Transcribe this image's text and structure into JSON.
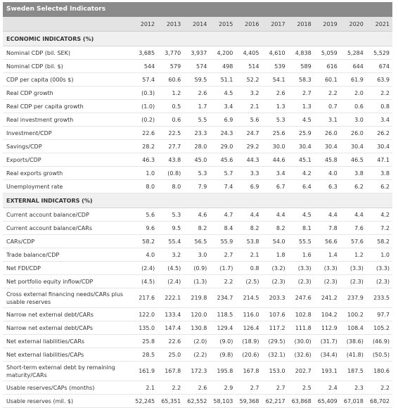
{
  "title": "Sweden Selected Indicators",
  "years": [
    "2012",
    "2013",
    "2014",
    "2015",
    "2016",
    "2017",
    "2018",
    "2019",
    "2020",
    "2021"
  ],
  "sections": [
    {
      "heading": "ECONOMIC INDICATORS (%)",
      "rows": [
        {
          "label": "Nominal CDP (bil. SEK)",
          "values": [
            "3,685",
            "3,770",
            "3,937",
            "4,200",
            "4,405",
            "4,610",
            "4,838",
            "5,059",
            "5,284",
            "5,529"
          ]
        },
        {
          "label": "Nominal CDP (bil. $)",
          "values": [
            "544",
            "579",
            "574",
            "498",
            "514",
            "539",
            "589",
            "616",
            "644",
            "674"
          ]
        },
        {
          "label": "CDP per capita (000s $)",
          "values": [
            "57.4",
            "60.6",
            "59.5",
            "51.1",
            "52.2",
            "54.1",
            "58.3",
            "60.1",
            "61.9",
            "63.9"
          ]
        },
        {
          "label": "Real CDP growth",
          "values": [
            "(0.3)",
            "1.2",
            "2.6",
            "4.5",
            "3.2",
            "2.6",
            "2.7",
            "2.2",
            "2.0",
            "2.2"
          ]
        },
        {
          "label": "Real CDP per capita growth",
          "values": [
            "(1.0)",
            "0.5",
            "1.7",
            "3.4",
            "2.1",
            "1.3",
            "1.3",
            "0.7",
            "0.6",
            "0.8"
          ]
        },
        {
          "label": "Real investment growth",
          "values": [
            "(0.2)",
            "0.6",
            "5.5",
            "6.9",
            "5.6",
            "5.3",
            "4.5",
            "3.1",
            "3.0",
            "3.4"
          ]
        },
        {
          "label": "Investment/CDP",
          "values": [
            "22.6",
            "22.5",
            "23.3",
            "24.3",
            "24.7",
            "25.6",
            "25.9",
            "26.0",
            "26.0",
            "26.2"
          ]
        },
        {
          "label": "Savings/CDP",
          "values": [
            "28.2",
            "27.7",
            "28.0",
            "29.0",
            "29.2",
            "30.0",
            "30.4",
            "30.4",
            "30.4",
            "30.4"
          ]
        },
        {
          "label": "Exports/CDP",
          "values": [
            "46.3",
            "43.8",
            "45.0",
            "45.6",
            "44.3",
            "44.6",
            "45.1",
            "45.8",
            "46.5",
            "47.1"
          ]
        },
        {
          "label": "Real exports growth",
          "values": [
            "1.0",
            "(0.8)",
            "5.3",
            "5.7",
            "3.3",
            "3.4",
            "4.2",
            "4.0",
            "3.8",
            "3.8"
          ]
        },
        {
          "label": "Unemployment rate",
          "values": [
            "8.0",
            "8.0",
            "7.9",
            "7.4",
            "6.9",
            "6.7",
            "6.4",
            "6.3",
            "6.2",
            "6.2"
          ]
        }
      ]
    },
    {
      "heading": "EXTERNAL INDICATORS (%)",
      "rows": [
        {
          "label": "Current account balance/CDP",
          "values": [
            "5.6",
            "5.3",
            "4.6",
            "4.7",
            "4.4",
            "4.4",
            "4.5",
            "4.4",
            "4.4",
            "4.2"
          ]
        },
        {
          "label": "Current account balance/CARs",
          "values": [
            "9.6",
            "9.5",
            "8.2",
            "8.4",
            "8.2",
            "8.2",
            "8.1",
            "7.8",
            "7.6",
            "7.2"
          ]
        },
        {
          "label": "CARs/CDP",
          "values": [
            "58.2",
            "55.4",
            "56.5",
            "55.9",
            "53.8",
            "54.0",
            "55.5",
            "56.6",
            "57.6",
            "58.2"
          ]
        },
        {
          "label": "Trade balance/CDP",
          "values": [
            "4.0",
            "3.2",
            "3.0",
            "2.7",
            "2.1",
            "1.8",
            "1.6",
            "1.4",
            "1.2",
            "1.0"
          ]
        },
        {
          "label": "Net FDI/CDP",
          "values": [
            "(2.4)",
            "(4.5)",
            "(0.9)",
            "(1.7)",
            "0.8",
            "(3.2)",
            "(3.3)",
            "(3.3)",
            "(3.3)",
            "(3.3)"
          ]
        },
        {
          "label": "Net portfolio equity inflow/CDP",
          "values": [
            "(4.5)",
            "(2.4)",
            "(1.3)",
            "2.2",
            "(2.5)",
            "(2.3)",
            "(2.3)",
            "(2.3)",
            "(2.3)",
            "(2.3)"
          ]
        },
        {
          "label": "Cross external financing needs/CARs plus usable reserves",
          "tall": true,
          "values": [
            "217.6",
            "222.1",
            "219.8",
            "234.7",
            "214.5",
            "203.3",
            "247.6",
            "241.2",
            "237.9",
            "233.5"
          ]
        },
        {
          "label": "Narrow net external debt/CARs",
          "values": [
            "122.0",
            "133.4",
            "120.0",
            "118.5",
            "116.0",
            "107.6",
            "102.8",
            "104.2",
            "100.2",
            "97.7"
          ]
        },
        {
          "label": "Narrow net external debt/CAPs",
          "values": [
            "135.0",
            "147.4",
            "130.8",
            "129.4",
            "126.4",
            "117.2",
            "111.8",
            "112.9",
            "108.4",
            "105.2"
          ]
        },
        {
          "label": "Net external liabilities/CARs",
          "values": [
            "25.8",
            "22.6",
            "(2.0)",
            "(9.0)",
            "(18.9)",
            "(29.5)",
            "(30.0)",
            "(31.7)",
            "(38.6)",
            "(46.9)"
          ]
        },
        {
          "label": "Net external liabilities/CAPs",
          "values": [
            "28.5",
            "25.0",
            "(2.2)",
            "(9.8)",
            "(20.6)",
            "(32.1)",
            "(32.6)",
            "(34.4)",
            "(41.8)",
            "(50.5)"
          ]
        },
        {
          "label": "Short-term external debt by remaining maturity/CARs",
          "tall": true,
          "values": [
            "161.9",
            "167.8",
            "172.3",
            "195.8",
            "167.8",
            "153.0",
            "202.7",
            "193.1",
            "187.5",
            "180.6"
          ]
        },
        {
          "label": "Usable reserves/CAPs (months)",
          "values": [
            "2.1",
            "2.2",
            "2.6",
            "2.9",
            "2.7",
            "2.7",
            "2.5",
            "2.4",
            "2.3",
            "2.2"
          ]
        },
        {
          "label": "Usable reserves (mil. $)",
          "values": [
            "52,245",
            "65,351",
            "62,552",
            "58,103",
            "59,368",
            "62,217",
            "63,868",
            "65,409",
            "67,018",
            "68,702"
          ]
        }
      ]
    }
  ]
}
